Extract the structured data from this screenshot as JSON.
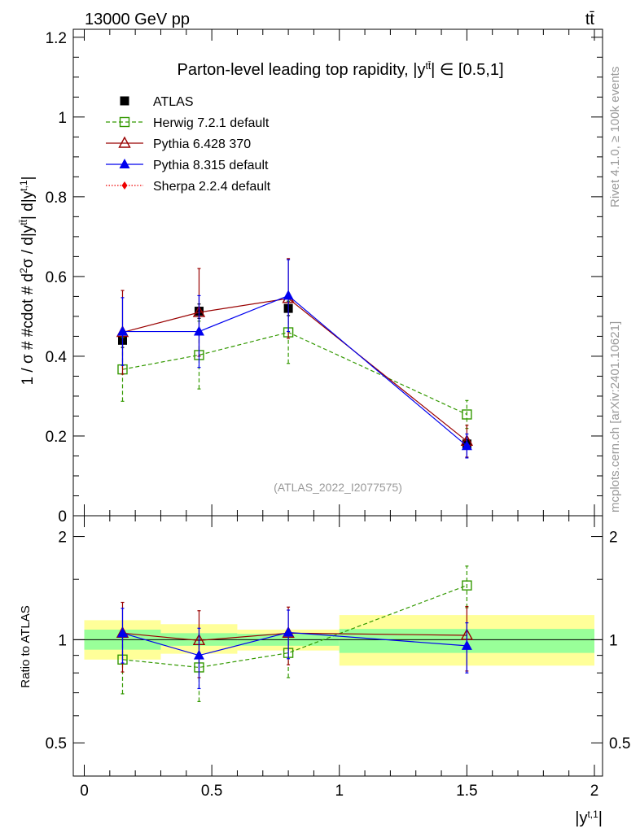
{
  "header": {
    "left": "13000 GeV pp",
    "right": "tt̄"
  },
  "side_labels": {
    "rivet": "Rivet 4.1.0, ≥ 100k events",
    "mcplots": "mcplots.cern.ch [arXiv:2401.10621]"
  },
  "colors": {
    "atlas": "#000000",
    "herwig": "#339900",
    "pythia6": "#990000",
    "pythia8": "#0000ee",
    "sherpa": "#ee0000",
    "band_inner": "#99ff99",
    "band_outer": "#ffff99",
    "watermark": "#999999"
  },
  "chart_data": [
    {
      "type": "scatter",
      "title": "Parton-level leading top rapidity, |y^{tt̄}| ∈ [0.5,1]",
      "title_parts": {
        "main": "Parton-level leading top rapidity, |y",
        "sup": "tt̄",
        "tail": "| ∈ [0.5,1]"
      },
      "ylabel": "1 / σ # #cdot # d²σ / d|y^{tt̄}| d|y^{t,1}|",
      "ylabel_parts": {
        "a": "1 / σ # #cdot # d",
        "sup2": "2",
        "b": "σ / d|y",
        "sup_tt": "tt̄",
        "c": "| d|y",
        "sup_t1": "t,1",
        "d": "|"
      },
      "watermark": "(ATLAS_2022_I2077575)",
      "xlim": [
        0,
        2
      ],
      "ylim": [
        0,
        1.22
      ],
      "yticks": [
        "0",
        "0.2",
        "0.4",
        "0.6",
        "0.8",
        "1",
        "1.2"
      ],
      "ytick_values": [
        0,
        0.2,
        0.4,
        0.6,
        0.8,
        1.0,
        1.2
      ],
      "legend_position": "top-left",
      "series": [
        {
          "name": "ATLAS",
          "key": "atlas",
          "marker": "square-filled",
          "line": "none",
          "x": [
            0.15,
            0.45,
            0.8,
            1.5
          ],
          "y": [
            0.44,
            0.513,
            0.52,
            0.18
          ],
          "err": [
            0.018,
            0.018,
            0.018,
            0.012
          ]
        },
        {
          "name": "Herwig 7.2.1 default",
          "key": "herwig",
          "marker": "square-open",
          "line": "dashed",
          "x": [
            0.15,
            0.45,
            0.8,
            1.5
          ],
          "y": [
            0.367,
            0.403,
            0.46,
            0.254
          ],
          "err": [
            0.08,
            0.085,
            0.078,
            0.035
          ]
        },
        {
          "name": "Pythia 6.428 370",
          "key": "pythia6",
          "marker": "triangle-open",
          "line": "solid",
          "x": [
            0.15,
            0.45,
            0.8,
            1.5
          ],
          "y": [
            0.46,
            0.51,
            0.545,
            0.187
          ],
          "err": [
            0.105,
            0.11,
            0.1,
            0.04
          ]
        },
        {
          "name": "Pythia 8.315 default",
          "key": "pythia8",
          "marker": "triangle-filled",
          "line": "solid",
          "x": [
            0.15,
            0.45,
            0.8,
            1.5
          ],
          "y": [
            0.462,
            0.462,
            0.552,
            0.175
          ],
          "err": [
            0.085,
            0.09,
            0.09,
            0.03
          ]
        },
        {
          "name": "Sherpa 2.2.4 default",
          "key": "sherpa",
          "marker": "diamond-filled",
          "line": "dotted",
          "x": [],
          "y": [],
          "err": []
        }
      ]
    },
    {
      "type": "scatter",
      "title": "",
      "ylabel": "Ratio to ATLAS",
      "xlabel": "|y^{t,1}|",
      "xlabel_parts": {
        "a": "|y",
        "sup": "t,1",
        "b": "|"
      },
      "xlim": [
        0,
        2
      ],
      "ylim": [
        0.4,
        2.3
      ],
      "yscale": "log",
      "yticks": [
        "0.5",
        "1",
        "2"
      ],
      "ytick_values": [
        0.5,
        1,
        2
      ],
      "xticks": [
        "0",
        "0.5",
        "1",
        "1.5",
        "2"
      ],
      "xtick_values": [
        0,
        0.5,
        1,
        1.5,
        2
      ],
      "bands": [
        {
          "x0": 0.0,
          "x1": 0.3,
          "inner": [
            0.935,
            1.07
          ],
          "outer": [
            0.875,
            1.14
          ]
        },
        {
          "x0": 0.3,
          "x1": 0.6,
          "inner": [
            0.96,
            1.045
          ],
          "outer": [
            0.91,
            1.11
          ]
        },
        {
          "x0": 0.6,
          "x1": 1.0,
          "inner": [
            0.96,
            1.04
          ],
          "outer": [
            0.93,
            1.07
          ]
        },
        {
          "x0": 1.0,
          "x1": 2.0,
          "inner": [
            0.915,
            1.075
          ],
          "outer": [
            0.84,
            1.18
          ]
        }
      ],
      "series": [
        {
          "key": "herwig",
          "marker": "square-open",
          "line": "dashed",
          "x": [
            0.15,
            0.45,
            0.8,
            1.5
          ],
          "y": [
            0.875,
            0.83,
            0.915,
            1.44
          ],
          "err": [
            0.18,
            0.17,
            0.14,
            0.2
          ]
        },
        {
          "key": "pythia6",
          "marker": "triangle-open",
          "line": "solid",
          "x": [
            0.15,
            0.45,
            0.8,
            1.5
          ],
          "y": [
            1.045,
            0.995,
            1.045,
            1.03
          ],
          "err": [
            0.24,
            0.22,
            0.2,
            0.22
          ]
        },
        {
          "key": "pythia8",
          "marker": "triangle-filled",
          "line": "solid",
          "x": [
            0.15,
            0.45,
            0.8,
            1.5
          ],
          "y": [
            1.045,
            0.9,
            1.05,
            0.96
          ],
          "err": [
            0.19,
            0.18,
            0.17,
            0.16
          ]
        }
      ]
    }
  ]
}
